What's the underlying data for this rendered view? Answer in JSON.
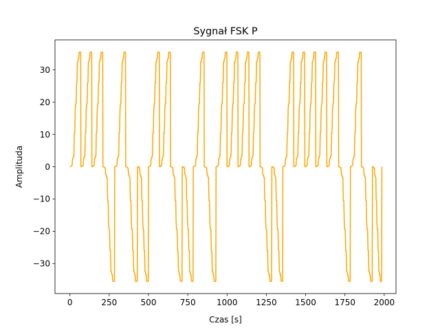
{
  "chart_data": {
    "type": "line",
    "title": "Sygnał FSK P",
    "xlabel": "Czas [s]",
    "ylabel": "Amplituda",
    "xlim": [
      -95,
      2075
    ],
    "ylim": [
      -39.3,
      39.3
    ],
    "xticks": [
      0,
      250,
      500,
      750,
      1000,
      1250,
      1500,
      1750,
      2000
    ],
    "yticks": [
      -30,
      -20,
      -10,
      0,
      10,
      20,
      30
    ],
    "xtick_labels": [
      "0",
      "250",
      "500",
      "750",
      "1000",
      "1250",
      "1500",
      "1750",
      "2000"
    ],
    "ytick_labels": [
      "−30",
      "−20",
      "−10",
      "0",
      "10",
      "20",
      "30"
    ],
    "grid": false,
    "line_color": "#ffa500",
    "series": [
      {
        "color": "#ffa500",
        "segments": [
          {
            "start": 0,
            "end": 70,
            "sign": 1
          },
          {
            "start": 70,
            "end": 140,
            "sign": 1
          },
          {
            "start": 140,
            "end": 210,
            "sign": 1
          },
          {
            "start": 210,
            "end": 285,
            "sign": -1
          },
          {
            "start": 285,
            "end": 355,
            "sign": 1
          },
          {
            "start": 355,
            "end": 430,
            "sign": -1
          },
          {
            "start": 430,
            "end": 500,
            "sign": -1
          },
          {
            "start": 500,
            "end": 570,
            "sign": 1
          },
          {
            "start": 570,
            "end": 640,
            "sign": 1
          },
          {
            "start": 640,
            "end": 715,
            "sign": -1
          },
          {
            "start": 715,
            "end": 785,
            "sign": -1
          },
          {
            "start": 785,
            "end": 855,
            "sign": 1
          },
          {
            "start": 855,
            "end": 930,
            "sign": -1
          },
          {
            "start": 930,
            "end": 1000,
            "sign": 1
          },
          {
            "start": 1000,
            "end": 1070,
            "sign": 1
          },
          {
            "start": 1070,
            "end": 1140,
            "sign": 1
          },
          {
            "start": 1140,
            "end": 1210,
            "sign": 1
          },
          {
            "start": 1210,
            "end": 1285,
            "sign": -1
          },
          {
            "start": 1285,
            "end": 1355,
            "sign": -1
          },
          {
            "start": 1355,
            "end": 1425,
            "sign": 1
          },
          {
            "start": 1425,
            "end": 1495,
            "sign": 1
          },
          {
            "start": 1495,
            "end": 1565,
            "sign": 1
          },
          {
            "start": 1565,
            "end": 1635,
            "sign": 1
          },
          {
            "start": 1635,
            "end": 1710,
            "sign": 1
          },
          {
            "start": 1710,
            "end": 1785,
            "sign": -1
          },
          {
            "start": 1785,
            "end": 1855,
            "sign": 1
          },
          {
            "start": 1855,
            "end": 1925,
            "sign": -1
          },
          {
            "start": 1925,
            "end": 1985,
            "sign": -1
          }
        ],
        "staircase_levels": [
          0,
          0.1,
          0.35,
          2.5,
          3.3,
          10.5,
          17.5,
          19.5,
          26,
          32.5,
          33.5,
          35.5,
          35.5
        ],
        "peak_amplitude": 35.5
      }
    ]
  }
}
